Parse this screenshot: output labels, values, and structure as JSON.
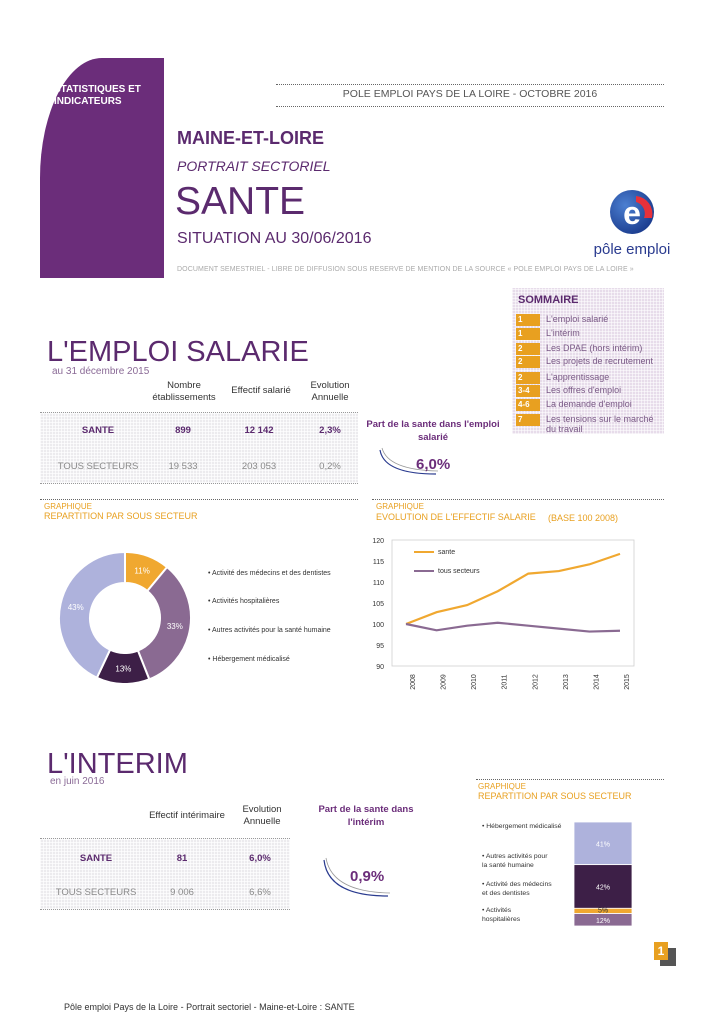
{
  "header": {
    "tab_label": "STATISTIQUES ET INDICATEURS",
    "publisher": "POLE EMPLOI PAYS DE LA LOIRE -  OCTOBRE 2016",
    "department": "MAINE-ET-LOIRE",
    "kicker": "PORTRAIT SECTORIEL",
    "sector": "SANTE",
    "situation": "SITUATION AU 30/06/2016",
    "legal": "DOCUMENT SEMESTRIEL - LIBRE DE DIFFUSION SOUS RESERVE DE MENTION DE LA SOURCE « POLE EMPLOI PAYS DE LA LOIRE »",
    "logo_text": "pôle emploi",
    "logo_letter": "e"
  },
  "sommaire": {
    "title": "SOMMAIRE",
    "items": [
      {
        "num": "1",
        "label": "L'emploi salarié"
      },
      {
        "num": "1",
        "label": "L'intérim"
      },
      {
        "num": "2",
        "label": "Les DPAE (hors intérim)"
      },
      {
        "num": "2",
        "label": "Les projets de recrutement"
      },
      {
        "num": "2",
        "label": "L'apprentissage"
      },
      {
        "num": "3-4",
        "label": "Les offres d'emploi"
      },
      {
        "num": "4-6",
        "label": "La demande d'emploi"
      },
      {
        "num": "7",
        "label": "Les tensions sur le marché du travail"
      }
    ]
  },
  "emploi": {
    "title": "L'EMPLOI SALARIE",
    "date": "au 31 décembre 2015",
    "col_etab": "Nombre établissements",
    "col_effectif": "Effectif salarié",
    "col_evol": "Evolution Annuelle",
    "rows": [
      {
        "label": "SANTE",
        "etab": "899",
        "effectif": "12 142",
        "evol": "2,3%"
      },
      {
        "label": "TOUS SECTEURS",
        "etab": "19 533",
        "effectif": "203 053",
        "evol": "0,2%"
      }
    ],
    "part_title": "Part de la sante dans l'emploi salarié",
    "part_value": "6,0%"
  },
  "graph_repartition": {
    "kicker": "GRAPHIQUE",
    "title": "REPARTITION PAR SOUS SECTEUR"
  },
  "graph_evolution": {
    "kicker": "GRAPHIQUE",
    "title": "EVOLUTION DE L'EFFECTIF SALARIE",
    "base": "(BASE 100 2008)"
  },
  "interim": {
    "title": "L'INTERIM",
    "date": "en juin 2016",
    "col_effectif": "Effectif intérimaire",
    "col_evol": "Evolution Annuelle",
    "rows": [
      {
        "label": "SANTE",
        "effectif": "81",
        "evol": "6,0%"
      },
      {
        "label": "TOUS SECTEURS",
        "effectif": "9 006",
        "evol": "6,6%"
      }
    ],
    "part_title": "Part de la sante dans l'intérim",
    "part_value": "0,9%"
  },
  "graph_interim": {
    "kicker": "GRAPHIQUE",
    "title": "REPARTITION PAR SOUS SECTEUR"
  },
  "footer": {
    "text": "Pôle emploi Pays de la Loire - Portrait sectoriel - Maine-et-Loire : SANTE",
    "page": "1"
  },
  "colors": {
    "purple": "#6b2d7a",
    "orange": "#e8a020",
    "medium_purple": "#8a6a92",
    "dark_purple": "#3d1f47",
    "lavender": "#aeb2dc"
  },
  "chart_data": [
    {
      "type": "pie",
      "variant": "donut",
      "categories": [
        "Activité des médecins et des dentistes",
        "Activités hospitalières",
        "Autres activités pour la santé humaine",
        "Hébergement médicalisé"
      ],
      "values": [
        11,
        33,
        13,
        43
      ],
      "labels": [
        "11%",
        "33%",
        "13%",
        "43%"
      ],
      "colors": [
        "#f0a830",
        "#8a6a92",
        "#3d1f47",
        "#aeb2dc"
      ],
      "legend_position": "right"
    },
    {
      "type": "line",
      "x": [
        "2008",
        "2009",
        "2010",
        "2011",
        "2012",
        "2013",
        "2014",
        "2015"
      ],
      "series": [
        {
          "name": "sante",
          "values": [
            100,
            102.8,
            104.5,
            107.8,
            112,
            112.6,
            114.2,
            116.7
          ],
          "color": "#f0a830"
        },
        {
          "name": "tous secteurs",
          "values": [
            100,
            98.5,
            99.6,
            100.3,
            99.6,
            98.9,
            98.2,
            98.4
          ],
          "color": "#8a6a92"
        }
      ],
      "ylim": [
        90,
        120
      ],
      "yticks": [
        "90",
        "95",
        "100",
        "105",
        "110",
        "115",
        "120"
      ],
      "legend_position": "top-left"
    },
    {
      "type": "bar",
      "variant": "stacked-column",
      "categories": [
        "Hébergement médicalisé",
        "Autres activités pour la santé humaine",
        "Activité des médecins et des dentistes",
        "Activités hospitalières"
      ],
      "values": [
        41,
        42,
        5,
        12
      ],
      "labels": [
        "41%",
        "42%",
        "5%",
        "12%"
      ],
      "colors": [
        "#aeb2dc",
        "#3d1f47",
        "#f0a830",
        "#8a6a92"
      ],
      "legend_position": "left"
    }
  ]
}
